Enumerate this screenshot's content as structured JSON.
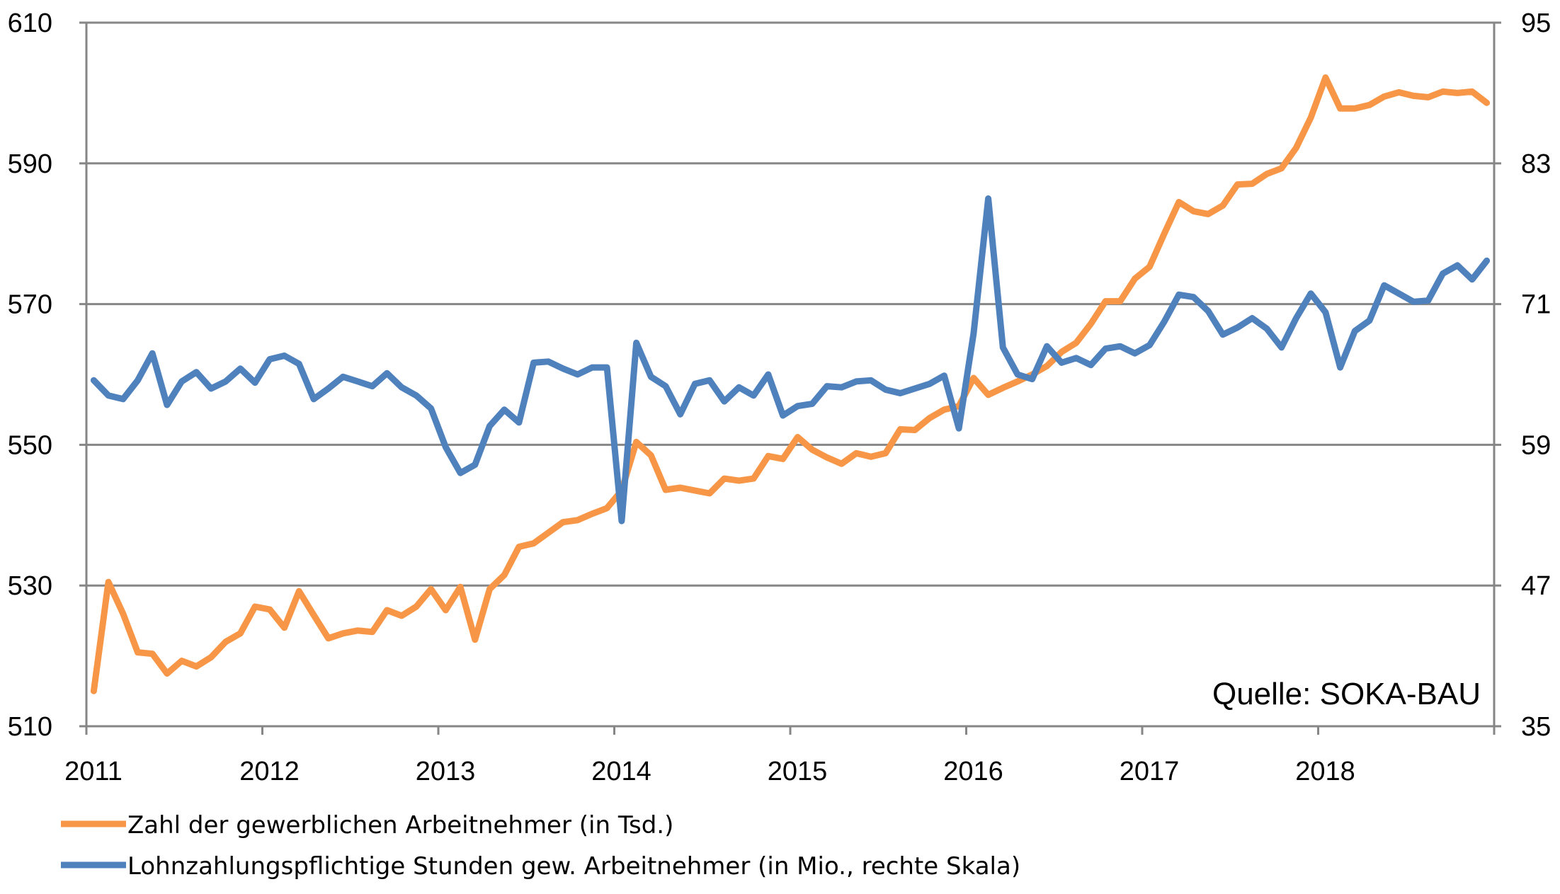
{
  "chart_data": {
    "type": "line",
    "title": "",
    "xlabel": "",
    "ylabel": "",
    "x_start_year": 2011,
    "x_tick_labels": [
      "2011",
      "2012",
      "2013",
      "2014",
      "2015",
      "2016",
      "2017",
      "2018"
    ],
    "y_left": {
      "min": 510,
      "max": 610,
      "ticks": [
        "510",
        "530",
        "550",
        "570",
        "590",
        "610"
      ]
    },
    "y_right": {
      "min": 35,
      "max": 95,
      "ticks": [
        "35",
        "47",
        "59",
        "71",
        "83",
        "95"
      ]
    },
    "grid": true,
    "legend_position": "bottom-left",
    "annotation": "Quelle: SOKA-BAU",
    "series": [
      {
        "name": "Zahl der gewerblichen Arbeitnehmer (in Tsd.)",
        "axis": "left",
        "color": "#f79646",
        "values": [
          515,
          530.5,
          526,
          520.5,
          520.3,
          517.5,
          519.3,
          518.5,
          519.8,
          522,
          523.2,
          527,
          526.6,
          524,
          529.2,
          525.8,
          522.5,
          523.2,
          523.6,
          523.4,
          526.5,
          525.7,
          527,
          529.5,
          526.5,
          529.8,
          522.3,
          529.5,
          531.5,
          535.5,
          536,
          537.5,
          539,
          539.3,
          540.2,
          541,
          543.5,
          550.4,
          548.5,
          543.6,
          543.9,
          543.5,
          543.1,
          545.2,
          544.9,
          545.2,
          548.4,
          548,
          551.1,
          549.3,
          548.2,
          547.3,
          548.8,
          548.3,
          548.8,
          552.2,
          552.1,
          553.8,
          555,
          555.5,
          559.5,
          557.1,
          558.1,
          559,
          560,
          561.2,
          563.2,
          564.5,
          567.2,
          570.4,
          570.4,
          573.6,
          575.3,
          580,
          584.5,
          583.2,
          582.8,
          584,
          587,
          587.1,
          588.5,
          589.3,
          592.2,
          596.5,
          602.2,
          597.8,
          597.8,
          598.3,
          599.5,
          600.1,
          599.6,
          599.4,
          600.2,
          600,
          600.2,
          598.6
        ]
      },
      {
        "name": "Lohnzahlungspflichtige Stunden gew. Arbeitnehmer (in Mio., rechte Skala)",
        "axis": "right",
        "color": "#4f81bd",
        "values": [
          64.5,
          63.2,
          62.9,
          64.5,
          66.8,
          62.4,
          64.4,
          65.2,
          63.8,
          64.4,
          65.5,
          64.3,
          66.3,
          66.6,
          65.9,
          62.9,
          63.8,
          64.8,
          64.4,
          64,
          65.1,
          63.9,
          63.2,
          62.1,
          58.8,
          56.6,
          57.3,
          60.6,
          62,
          60.9,
          66,
          66.1,
          65.5,
          65,
          65.6,
          65.6,
          52.5,
          67.7,
          64.8,
          64,
          61.6,
          64.2,
          64.5,
          62.7,
          63.9,
          63.2,
          65,
          61.5,
          62.3,
          62.5,
          64,
          63.9,
          64.4,
          64.5,
          63.7,
          63.4,
          63.8,
          64.2,
          64.9,
          60.4,
          68.5,
          80,
          67.3,
          65,
          64.6,
          67.4,
          66,
          66.4,
          65.8,
          67.2,
          67.4,
          66.8,
          67.5,
          69.5,
          71.8,
          71.6,
          70.4,
          68.4,
          69,
          69.8,
          68.9,
          67.3,
          69.8,
          71.9,
          70.3,
          65.6,
          68.7,
          69.6,
          72.6,
          71.9,
          71.2,
          71.3,
          73.6,
          74.3,
          73.1,
          74.7
        ]
      }
    ]
  }
}
